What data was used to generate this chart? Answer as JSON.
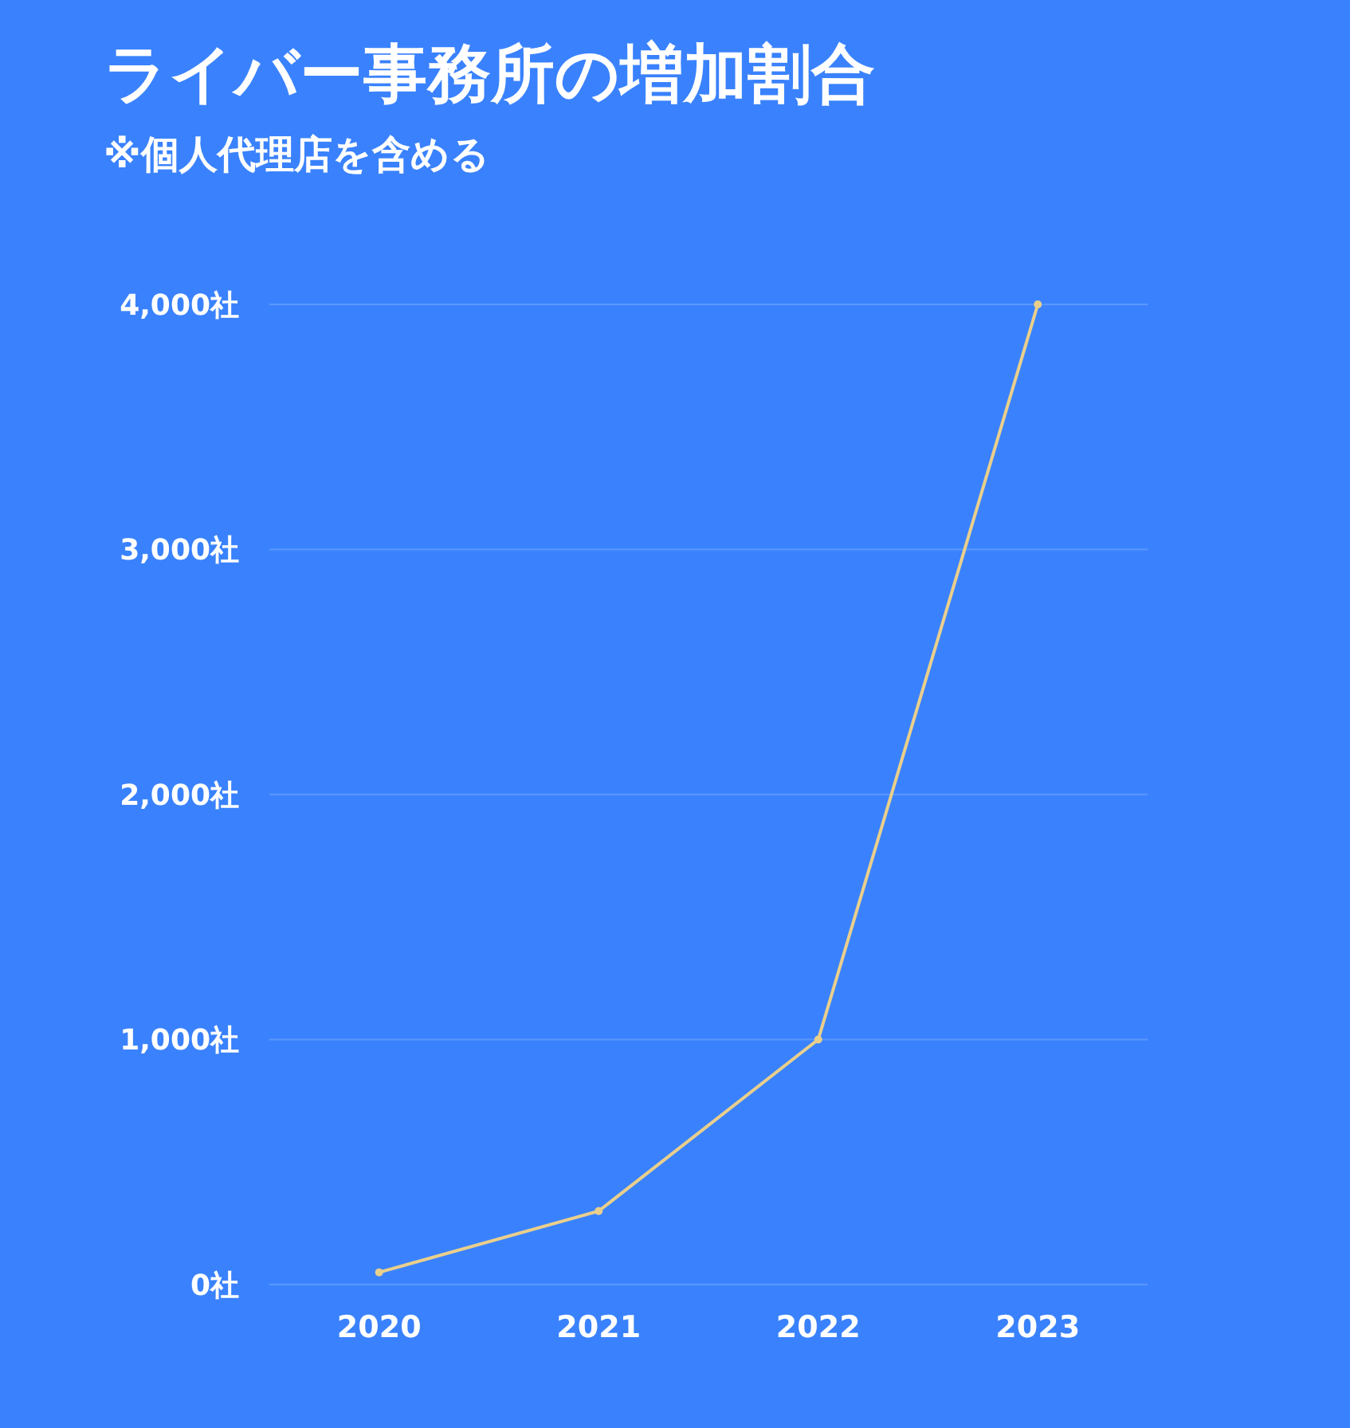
{
  "chart_data": {
    "type": "line",
    "title": "ライバー事務所の増加割合",
    "subtitle": "※個人代理店を含める",
    "categories": [
      "2020",
      "2021",
      "2022",
      "2023"
    ],
    "series": [
      {
        "color": "#e9cf8c",
        "values": [
          50,
          300,
          1000,
          4000
        ]
      }
    ],
    "ylim": [
      0,
      4000
    ],
    "yticks": [
      {
        "value": 0,
        "label": "0社"
      },
      {
        "value": 1000,
        "label": "1,000社"
      },
      {
        "value": 2000,
        "label": "2,000社"
      },
      {
        "value": 3000,
        "label": "3,000社"
      },
      {
        "value": 4000,
        "label": "4,000社"
      }
    ],
    "grid": "y",
    "marker": "circle",
    "line_style": "solid"
  }
}
